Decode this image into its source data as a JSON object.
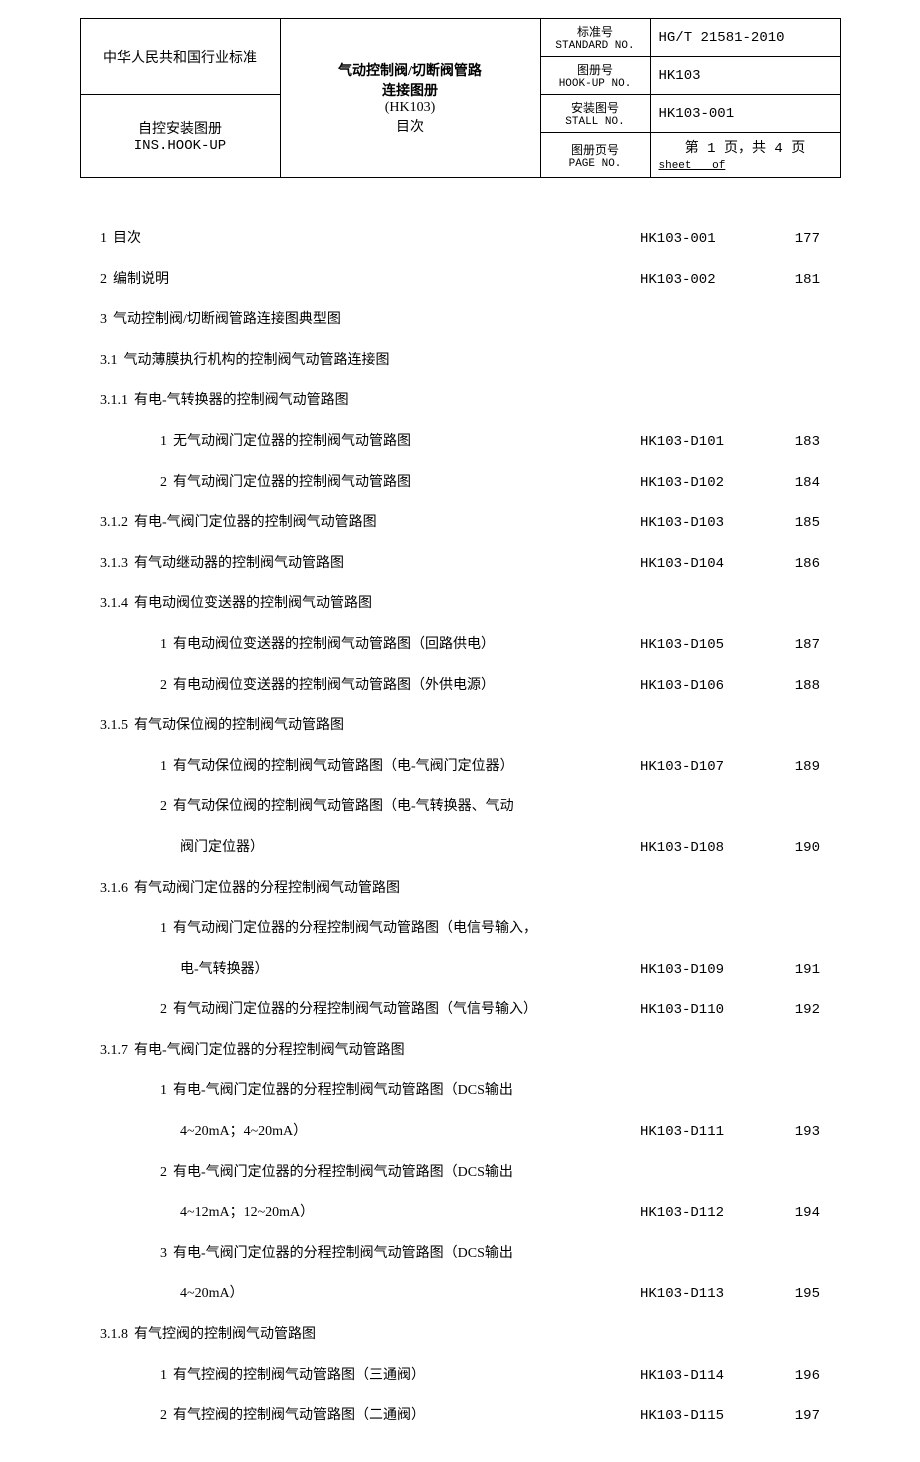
{
  "header": {
    "left_top": "中华人民共和国行业标准",
    "left_mid_cn": "自控安装图册",
    "left_mid_en": "INS.HOOK-UP",
    "mid_l1": "气动控制阀/切断阀管路",
    "mid_l2": "连接图册",
    "mid_l3": "(HK103)",
    "mid_l4": "目次",
    "std_lab_cn": "标准号",
    "std_lab_en": "STANDARD NO.",
    "std_val": "HG/T 21581-2010",
    "hook_lab_cn": "图册号",
    "hook_lab_en": "HOOK-UP NO.",
    "hook_val": "HK103",
    "inst_lab_cn": "安装图号",
    "inst_lab_en": "STALL NO.",
    "inst_val": "HK103-001",
    "page_lab_cn": "图册页号",
    "page_lab_en": "PAGE NO.",
    "page_val": "第 1 页，共 4 页",
    "page_val_en": "sheet   of"
  },
  "toc": [
    {
      "n": "1",
      "t": "目次",
      "c": "HK103-001",
      "p": "177",
      "lvl": "1"
    },
    {
      "n": "2",
      "t": "编制说明",
      "c": "HK103-002",
      "p": "181",
      "lvl": "1"
    },
    {
      "n": "3",
      "t": "气动控制阀/切断阀管路连接图典型图",
      "c": "",
      "p": "",
      "lvl": "1"
    },
    {
      "n": "3.1",
      "t": "气动薄膜执行机构的控制阀气动管路连接图",
      "c": "",
      "p": "",
      "lvl": "2"
    },
    {
      "n": "3.1.1",
      "t": "有电-气转换器的控制阀气动管路图",
      "c": "",
      "p": "",
      "lvl": "2"
    },
    {
      "n": "1",
      "t": "无气动阀门定位器的控制阀气动管路图",
      "c": "HK103-D101",
      "p": "183",
      "lvl": "sub"
    },
    {
      "n": "2",
      "t": "有气动阀门定位器的控制阀气动管路图",
      "c": "HK103-D102",
      "p": "184",
      "lvl": "sub"
    },
    {
      "n": "3.1.2",
      "t": "有电-气阀门定位器的控制阀气动管路图",
      "c": "HK103-D103",
      "p": "185",
      "lvl": "2"
    },
    {
      "n": "3.1.3",
      "t": "有气动继动器的控制阀气动管路图",
      "c": "HK103-D104",
      "p": "186",
      "lvl": "2"
    },
    {
      "n": "3.1.4",
      "t": "有电动阀位变送器的控制阀气动管路图",
      "c": "",
      "p": "",
      "lvl": "2"
    },
    {
      "n": "1",
      "t": "有电动阀位变送器的控制阀气动管路图（回路供电）",
      "c": "HK103-D105",
      "p": "187",
      "lvl": "sub"
    },
    {
      "n": "2",
      "t": "有电动阀位变送器的控制阀气动管路图（外供电源）",
      "c": "HK103-D106",
      "p": "188",
      "lvl": "sub"
    },
    {
      "n": "3.1.5",
      "t": "有气动保位阀的控制阀气动管路图",
      "c": "",
      "p": "",
      "lvl": "2"
    },
    {
      "n": "1",
      "t": "有气动保位阀的控制阀气动管路图（电-气阀门定位器）",
      "c": "HK103-D107",
      "p": "189",
      "lvl": "sub"
    },
    {
      "n": "2",
      "t": "有气动保位阀的控制阀气动管路图（电-气转换器、气动",
      "c": "",
      "p": "",
      "lvl": "sub"
    },
    {
      "n": "",
      "t": "阀门定位器）",
      "c": "HK103-D108",
      "p": "190",
      "lvl": "cont"
    },
    {
      "n": "3.1.6",
      "t": "有气动阀门定位器的分程控制阀气动管路图",
      "c": "",
      "p": "",
      "lvl": "2"
    },
    {
      "n": "1",
      "t": "有气动阀门定位器的分程控制阀气动管路图（电信号输入，",
      "c": "",
      "p": "",
      "lvl": "sub"
    },
    {
      "n": "",
      "t": "电-气转换器）",
      "c": "HK103-D109",
      "p": "191",
      "lvl": "cont"
    },
    {
      "n": "2",
      "t": "有气动阀门定位器的分程控制阀气动管路图（气信号输入）",
      "c": "HK103-D110",
      "p": "192",
      "lvl": "sub"
    },
    {
      "n": "3.1.7",
      "t": "有电-气阀门定位器的分程控制阀气动管路图",
      "c": "",
      "p": "",
      "lvl": "2"
    },
    {
      "n": "1",
      "t": "有电-气阀门定位器的分程控制阀气动管路图（DCS输出",
      "c": "",
      "p": "",
      "lvl": "sub"
    },
    {
      "n": "",
      "t": "4~20mA；4~20mA）",
      "c": "HK103-D111",
      "p": "193",
      "lvl": "cont"
    },
    {
      "n": "2",
      "t": "有电-气阀门定位器的分程控制阀气动管路图（DCS输出",
      "c": "",
      "p": "",
      "lvl": "sub"
    },
    {
      "n": "",
      "t": "4~12mA；12~20mA）",
      "c": "HK103-D112",
      "p": "194",
      "lvl": "cont"
    },
    {
      "n": "3",
      "t": "有电-气阀门定位器的分程控制阀气动管路图（DCS输出",
      "c": "",
      "p": "",
      "lvl": "sub"
    },
    {
      "n": "",
      "t": "4~20mA）",
      "c": "HK103-D113",
      "p": "195",
      "lvl": "cont"
    },
    {
      "n": "3.1.8",
      "t": "有气控阀的控制阀气动管路图",
      "c": "",
      "p": "",
      "lvl": "2"
    },
    {
      "n": "1",
      "t": "有气控阀的控制阀气动管路图（三通阀）",
      "c": "HK103-D114",
      "p": "196",
      "lvl": "sub"
    },
    {
      "n": "2",
      "t": "有气控阀的控制阀气动管路图（二通阀）",
      "c": "HK103-D115",
      "p": "197",
      "lvl": "sub"
    }
  ]
}
